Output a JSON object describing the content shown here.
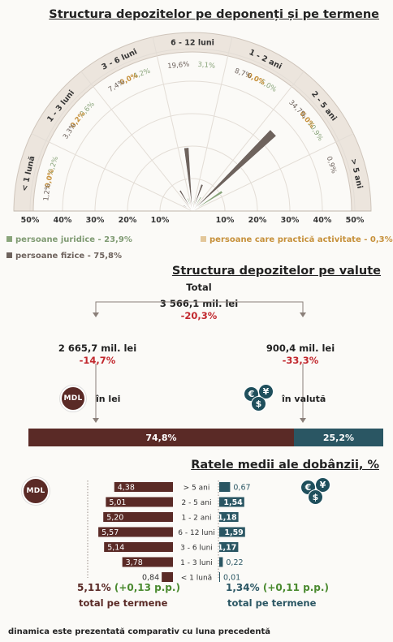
{
  "titles": {
    "main": "Structura depozitelor pe deponenți și pe termene",
    "currency": "Structura depozitelor pe valute",
    "rates": "Ratele medii ale dobânzii, %"
  },
  "chart_data": [
    {
      "type": "radial-bar",
      "title": "Structura depozitelor pe deponenți și pe termene",
      "categories": [
        "< 1 lună",
        "1 - 3 luni",
        "3 - 6 luni",
        "6 - 12 luni",
        "1 - 2 ani",
        "2 - 5 ani",
        "> 5 ani"
      ],
      "series": [
        {
          "name": "persoane juridice - 23,9%",
          "values": [
            0.2,
            0.6,
            4.2,
            3.1,
            5.0,
            10.9,
            0.0
          ],
          "labels": [
            "0,2%",
            "0,6%",
            "4,2%",
            "3,1%",
            "5,0%",
            "10,9%",
            ""
          ],
          "color": "#8aa57b"
        },
        {
          "name": "persoane care practică activitate - 0,3%",
          "values": [
            0.0,
            0.2,
            0.0,
            0.0,
            0.0,
            0.0,
            0.0
          ],
          "labels": [
            "0,0%",
            "0,2%",
            "0,0%",
            "",
            "0,0%",
            "0,0%",
            ""
          ],
          "color": "#c6903a"
        },
        {
          "name": "persoane fizice - 75,8%",
          "values": [
            1.2,
            3.3,
            7.4,
            19.6,
            8.7,
            34.7,
            0.9
          ],
          "labels": [
            "1,2%",
            "3,3%",
            "7,4%",
            "19,6%",
            "8,7%",
            "34,7%",
            "0,9%"
          ],
          "color": "#6e635d"
        }
      ],
      "radial_ticks": [
        "50%",
        "40%",
        "30%",
        "20%",
        "10%",
        "10%",
        "20%",
        "30%",
        "40%",
        "50%"
      ],
      "rmax": 50
    },
    {
      "type": "stacked-bar",
      "title": "Structura depozitelor pe valute",
      "categories": [
        "în lei",
        "în valută"
      ],
      "values": [
        74.8,
        25.2
      ],
      "labels": [
        "74,8%",
        "25,2%"
      ],
      "colors": [
        "#5a2a26",
        "#2a5663"
      ]
    },
    {
      "type": "bar",
      "title": "Ratele medii ale dobânzii, %",
      "categories": [
        "> 5 ani",
        "2 - 5 ani",
        "1 - 2 ani",
        "6 - 12 luni",
        "3 - 6 luni",
        "1 - 3 luni",
        "< 1 lună"
      ],
      "series": [
        {
          "name": "MDL",
          "values": [
            4.38,
            5.01,
            5.2,
            5.57,
            5.14,
            3.78,
            0.84
          ],
          "labels": [
            "4,38",
            "5,01",
            "5,20",
            "5,57",
            "5,14",
            "3,78",
            "0,84"
          ],
          "color": "#5a2a26"
        },
        {
          "name": "valută",
          "values": [
            0.67,
            1.54,
            1.18,
            1.59,
            1.17,
            0.22,
            0.01
          ],
          "labels": [
            "0,67",
            "1,54",
            "1,18",
            "1,59",
            "1,17",
            "0,22",
            "0,01"
          ],
          "color": "#2a5663"
        }
      ]
    }
  ],
  "currency": {
    "total_label": "Total",
    "total_value": "3 566,1 mil. lei",
    "total_change": "-20,3%",
    "lei_value": "2 665,7 mil. lei",
    "lei_change": "-14,7%",
    "lei_label": "în lei",
    "fx_value": "900,4 mil. lei",
    "fx_change": "-33,3%",
    "fx_label": "în valută",
    "mdl_badge": "MDL",
    "fx_symbols": [
      "€",
      "$",
      "¥"
    ]
  },
  "rates": {
    "mdl_total": "5,11%",
    "mdl_change": "(+0,13 p.p.)",
    "mdl_total_label": "total pe termene",
    "fx_total": "1,34%",
    "fx_change": "(+0,11 p.p.)",
    "fx_total_label": "total pe termene"
  },
  "footnote": "dinamica este prezentată comparativ cu luna precedentă"
}
